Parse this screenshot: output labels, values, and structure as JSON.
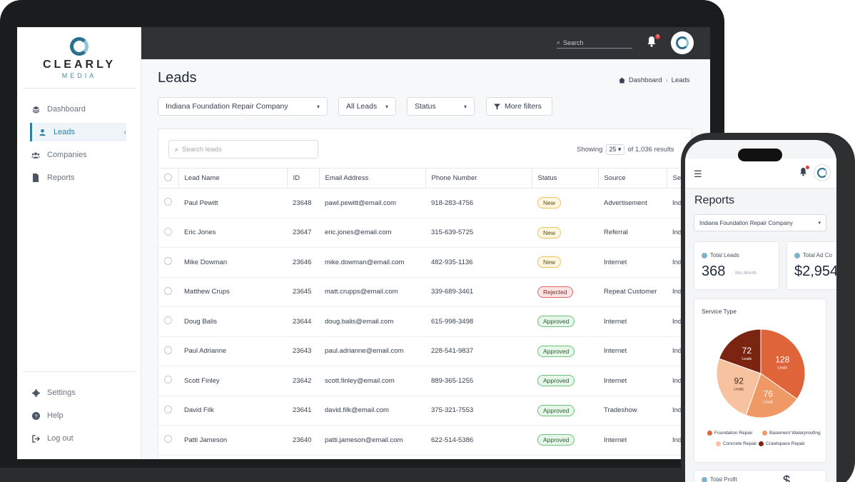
{
  "brand": {
    "name": "CLEARLY",
    "sub": "MEDIA"
  },
  "sidebar": {
    "items": [
      {
        "label": "Dashboard",
        "icon": "layers-icon"
      },
      {
        "label": "Leads",
        "icon": "user-icon",
        "active": true
      },
      {
        "label": "Companies",
        "icon": "users-icon"
      },
      {
        "label": "Reports",
        "icon": "document-icon"
      }
    ],
    "bottom": [
      {
        "label": "Settings",
        "icon": "gear-icon"
      },
      {
        "label": "Help",
        "icon": "help-icon"
      },
      {
        "label": "Log out",
        "icon": "logout-icon"
      }
    ]
  },
  "topbar": {
    "search_placeholder": "Search",
    "notifications": "3"
  },
  "page": {
    "title": "Leads",
    "breadcrumb": [
      "Dashboard",
      "Leads"
    ]
  },
  "filters": {
    "company": "Indiana Foundation Repair Company",
    "leads": "All Leads",
    "status": "Status",
    "more": "More filters"
  },
  "leads_panel": {
    "search_placeholder": "Search leads",
    "showing_label": "Showing",
    "page_size": "25",
    "results_text": "of 1,036 results",
    "columns": [
      "Lead Name",
      "ID",
      "Email Address",
      "Phone Number",
      "Status",
      "Source",
      "Se"
    ],
    "rows": [
      {
        "name": "Paul Pewitt",
        "id": "23648",
        "email": "pawl.pewitt@email.com",
        "phone": "918-283-4756",
        "status": "New",
        "source": "Advertisement",
        "extra": "Ind"
      },
      {
        "name": "Eric Jones",
        "id": "23647",
        "email": "eric.jones@email.com",
        "phone": "315-639-5725",
        "status": "New",
        "source": "Referral",
        "extra": "Ind"
      },
      {
        "name": "Mike Dowman",
        "id": "23646",
        "email": "mike.dowman@email.com",
        "phone": "482-935-1136",
        "status": "New",
        "source": "Internet",
        "extra": "Ind"
      },
      {
        "name": "Matthew Crups",
        "id": "23645",
        "email": "matt.crupps@email.com",
        "phone": "339-689-3461",
        "status": "Rejected",
        "source": "Repeat Customer",
        "extra": "Ind"
      },
      {
        "name": "Doug Balis",
        "id": "23644",
        "email": "doug.balis@email.com",
        "phone": "615-998-3498",
        "status": "Approved",
        "source": "Internet",
        "extra": "Ind"
      },
      {
        "name": "Paul Adrianne",
        "id": "23643",
        "email": "paul.adrianne@email.com",
        "phone": "228-541-9837",
        "status": "Approved",
        "source": "Internet",
        "extra": "Ind"
      },
      {
        "name": "Scott Finley",
        "id": "23642",
        "email": "scott.finley@email.com",
        "phone": "889-365-1255",
        "status": "Approved",
        "source": "Internet",
        "extra": "Ind"
      },
      {
        "name": "David Filk",
        "id": "23641",
        "email": "david.filk@email.com",
        "phone": "375-321-7553",
        "status": "Approved",
        "source": "Tradeshow",
        "extra": "Ind"
      },
      {
        "name": "Patti Jameson",
        "id": "23640",
        "email": "patti.jameson@email.com",
        "phone": "622-514-5386",
        "status": "Approved",
        "source": "Internet",
        "extra": "Ind"
      }
    ]
  },
  "mobile": {
    "title": "Reports",
    "company": "Indiana Foundation Repair Company",
    "total_leads_label": "Total Leads",
    "total_leads_value": "368",
    "total_leads_sub": "this Month",
    "total_ad_label": "Total Ad Co",
    "total_ad_value": "$2,954",
    "service_type_label": "Service Type",
    "bottom_label": "Total Profit",
    "bottom_value": "$",
    "colors": {
      "foundation": "#e0643a",
      "basement": "#ef9a66",
      "concrete": "#f6c2a0",
      "crawlspace": "#7b2412"
    }
  },
  "chart_data": {
    "type": "pie",
    "title": "Service Type",
    "unit_label": "Leads",
    "slices": [
      {
        "name": "Foundation Repair",
        "value": 128,
        "color": "#e0643a"
      },
      {
        "name": "Basement Waterproofing",
        "value": 76,
        "color": "#ef9a66"
      },
      {
        "name": "Concrete Repair",
        "value": 92,
        "color": "#f6c2a0"
      },
      {
        "name": "Crawlspace Repair",
        "value": 72,
        "color": "#7b2412"
      }
    ]
  }
}
